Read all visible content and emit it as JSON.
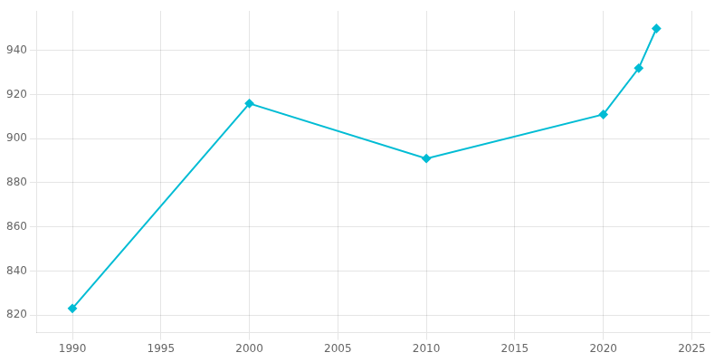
{
  "chart_data": {
    "type": "line",
    "x": [
      1990,
      2000,
      2010,
      2020,
      2022,
      2023
    ],
    "values": [
      823,
      916,
      891,
      911,
      932,
      950
    ],
    "color": "#00BCD4",
    "marker": "diamond",
    "xlim": [
      1988,
      2026
    ],
    "ylim": [
      812,
      958
    ],
    "xticks": [
      1990,
      1995,
      2000,
      2005,
      2010,
      2015,
      2020,
      2025
    ],
    "yticks": [
      820,
      840,
      860,
      880,
      900,
      920,
      940
    ],
    "grid": true
  }
}
